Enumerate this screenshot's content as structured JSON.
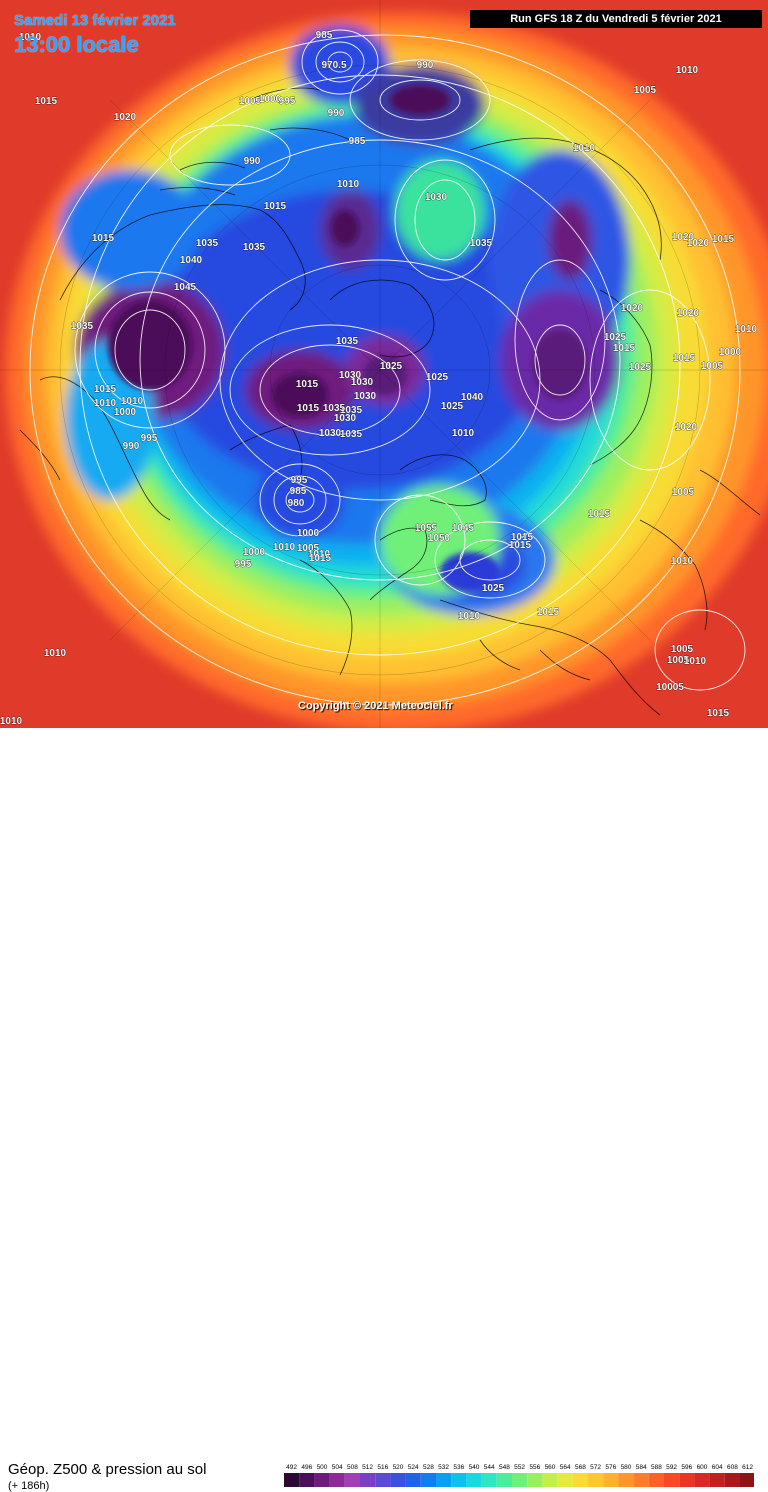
{
  "header": {
    "date": "Samedi 13 février 2021",
    "time": "13:00 locale",
    "run": "Run GFS 18 Z du Vendredi 5 février 2021"
  },
  "copyright": "Copyright © 2021 Meteociel.fr",
  "legend": {
    "title": "Géop. Z500 & pression au sol",
    "subtitle": "(+ 186h)",
    "ticks": [
      "492",
      "496",
      "500",
      "504",
      "508",
      "512",
      "516",
      "520",
      "524",
      "528",
      "532",
      "536",
      "540",
      "544",
      "548",
      "552",
      "556",
      "560",
      "564",
      "568",
      "572",
      "576",
      "580",
      "584",
      "588",
      "592",
      "596",
      "600",
      "604",
      "608",
      "612"
    ],
    "colors": [
      "#2a0a33",
      "#4b0f5a",
      "#6e1a7e",
      "#8e2a98",
      "#a33fb4",
      "#7a3fc4",
      "#5a4ad6",
      "#3b4fe0",
      "#2262ea",
      "#127df0",
      "#0aa0f2",
      "#0ec0ee",
      "#19d9e0",
      "#30e6c2",
      "#4bec9a",
      "#6ef07a",
      "#98f05f",
      "#c2ef4a",
      "#e6ea3e",
      "#f8dc35",
      "#ffc830",
      "#ffb02c",
      "#ff962a",
      "#ff7c28",
      "#ff6226",
      "#f84a26",
      "#ea3626",
      "#d82828",
      "#c21f22",
      "#a8181c",
      "#8e1216"
    ]
  },
  "pressure_labels": [
    {
      "text": "1010"
    },
    {
      "text": "985"
    },
    {
      "text": "970.5"
    },
    {
      "text": "990"
    },
    {
      "text": "1010"
    },
    {
      "text": "1005"
    },
    {
      "text": "1015"
    },
    {
      "text": "1020"
    },
    {
      "text": "1005"
    },
    {
      "text": "1000"
    },
    {
      "text": "995"
    },
    {
      "text": "990"
    },
    {
      "text": "985"
    },
    {
      "text": "990"
    },
    {
      "text": "1010"
    },
    {
      "text": "1010"
    },
    {
      "text": "1030"
    },
    {
      "text": "1015"
    },
    {
      "text": "1015"
    },
    {
      "text": "1035"
    },
    {
      "text": "1035"
    },
    {
      "text": "1035"
    },
    {
      "text": "1020"
    },
    {
      "text": "1020"
    },
    {
      "text": "1015"
    },
    {
      "text": "1040"
    },
    {
      "text": "1045"
    },
    {
      "text": "1035"
    },
    {
      "text": "1020"
    },
    {
      "text": "1010"
    },
    {
      "text": "1020"
    },
    {
      "text": "1035"
    },
    {
      "text": "1025"
    },
    {
      "text": "1015"
    },
    {
      "text": "1000"
    },
    {
      "text": "1015"
    },
    {
      "text": "1005"
    },
    {
      "text": "1025"
    },
    {
      "text": "1015"
    },
    {
      "text": "1030"
    },
    {
      "text": "1025"
    },
    {
      "text": "1025"
    },
    {
      "text": "1030"
    },
    {
      "text": "1030"
    },
    {
      "text": "1015"
    },
    {
      "text": "1010"
    },
    {
      "text": "1010"
    },
    {
      "text": "1000"
    },
    {
      "text": "1040"
    },
    {
      "text": "1035"
    },
    {
      "text": "1015"
    },
    {
      "text": "1035"
    },
    {
      "text": "1030"
    },
    {
      "text": "1025"
    },
    {
      "text": "1020"
    },
    {
      "text": "995"
    },
    {
      "text": "990"
    },
    {
      "text": "1030"
    },
    {
      "text": "1035"
    },
    {
      "text": "1010"
    },
    {
      "text": "995"
    },
    {
      "text": "985"
    },
    {
      "text": "980"
    },
    {
      "text": "1000"
    },
    {
      "text": "1010"
    },
    {
      "text": "1055"
    },
    {
      "text": "1045"
    },
    {
      "text": "1050"
    },
    {
      "text": "1015"
    },
    {
      "text": "1015"
    },
    {
      "text": "1025"
    },
    {
      "text": "1015"
    },
    {
      "text": "1015"
    },
    {
      "text": "1000"
    },
    {
      "text": "995"
    },
    {
      "text": "1005"
    },
    {
      "text": "1010"
    },
    {
      "text": "1015"
    },
    {
      "text": "1010"
    },
    {
      "text": "1010"
    },
    {
      "text": "1005"
    },
    {
      "text": "1005"
    },
    {
      "text": "1005"
    },
    {
      "text": "1010"
    },
    {
      "text": "10005"
    },
    {
      "text": "1015"
    },
    {
      "text": "1010"
    },
    {
      "text": "1010"
    }
  ]
}
